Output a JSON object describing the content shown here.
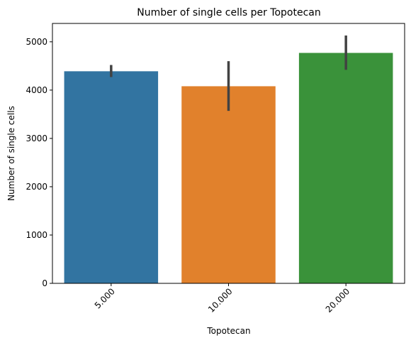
{
  "chart_data": {
    "type": "bar",
    "title": "Number of single cells per Topotecan",
    "xlabel": "Topotecan",
    "ylabel": "Number of single cells",
    "categories": [
      "5.000",
      "10.000",
      "20.000"
    ],
    "values": [
      4390,
      4080,
      4770
    ],
    "error_low": [
      4270,
      3570,
      4420
    ],
    "error_high": [
      4520,
      4600,
      5130
    ],
    "colors": [
      "#3274a1",
      "#e1812c",
      "#3a923a"
    ],
    "error_color": "#424242",
    "ylim": [
      0,
      5380
    ],
    "yticks": [
      0,
      1000,
      2000,
      3000,
      4000,
      5000
    ],
    "ytick_labels": [
      "0",
      "1000",
      "2000",
      "3000",
      "4000",
      "5000"
    ],
    "xtick_rotation": 45,
    "grid": false,
    "legend": false
  }
}
